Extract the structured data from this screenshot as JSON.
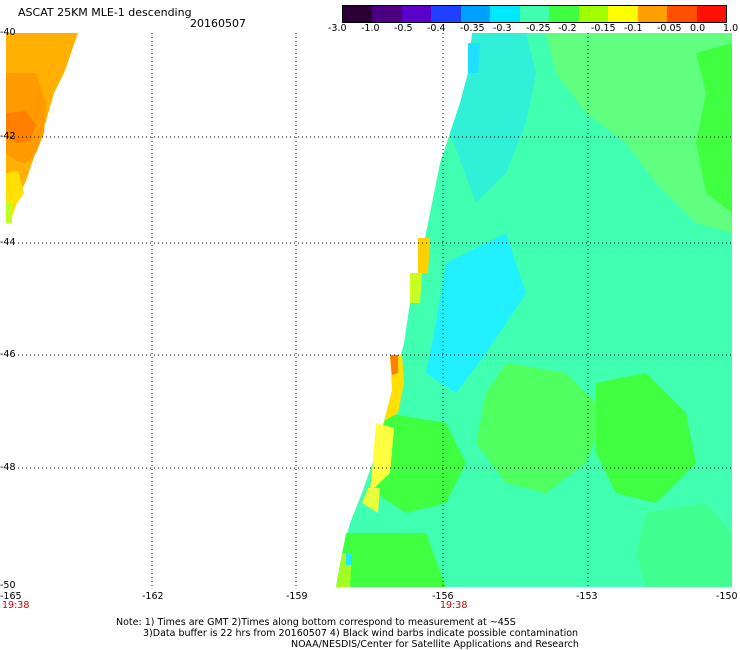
{
  "header": {
    "title": "ASCAT 25KM MLE-1 descending",
    "date": "20160507"
  },
  "colorbar": {
    "colors": [
      "#2a0034",
      "#4a0080",
      "#5a00c8",
      "#2040ff",
      "#00a0ff",
      "#00e8ff",
      "#40ffb0",
      "#40ff40",
      "#a0ff00",
      "#ffff00",
      "#ffa000",
      "#ff5000",
      "#ff1000"
    ],
    "tick_labels": [
      "-3.0",
      "-1.0",
      "-0.5",
      "-0.4",
      "-0.35",
      "-0.3",
      "-0.25",
      "-0.2",
      "-0.15",
      "-0.1",
      "-0.05",
      "0.0",
      "1.0"
    ]
  },
  "map": {
    "lon_labels": [
      "-165",
      "-162",
      "-159",
      "-156",
      "-153",
      "-150"
    ],
    "lat_labels": [
      "-40",
      "-42",
      "-44",
      "-46",
      "-48",
      "-50"
    ],
    "time_labels": [
      "19:38",
      "19:38"
    ]
  },
  "notes": {
    "line1": "Note: 1) Times are GMT 2)Times along bottom correspond to measurement at ~45S",
    "line2": "3)Data buffer is 22 hrs from 20160507 4) Black wind barbs indicate possible contamination",
    "line3": "NOAA/NESDIS/Center for Satellite Applications and Research"
  }
}
